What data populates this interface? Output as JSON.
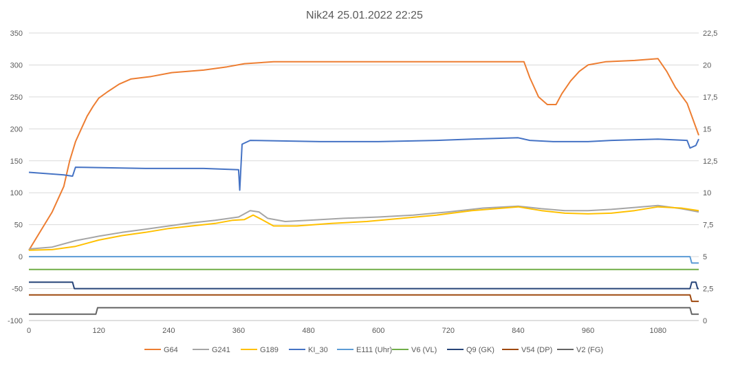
{
  "chart_data": {
    "type": "line",
    "title": "Nik24 25.01.2022 22:25",
    "xlim": [
      0,
      1150
    ],
    "ylim": [
      -100,
      350
    ],
    "y2lim": [
      0,
      22.5
    ],
    "x_ticks": [
      "0",
      "120",
      "240",
      "360",
      "480",
      "600",
      "720",
      "840",
      "960",
      "1080"
    ],
    "y_ticks": [
      "350",
      "300",
      "250",
      "200",
      "150",
      "100",
      "50",
      "0",
      "-50",
      "-100"
    ],
    "y2_ticks": [
      "22,5",
      "20",
      "17,5",
      "15",
      "12,5",
      "10",
      "7,5",
      "5",
      "2,5",
      "0"
    ],
    "grid": true,
    "legend_position": "bottom",
    "series": [
      {
        "name": "G64",
        "color": "#ED7D31",
        "axis": "left",
        "points": [
          [
            0,
            10
          ],
          [
            20,
            40
          ],
          [
            40,
            70
          ],
          [
            60,
            110
          ],
          [
            70,
            150
          ],
          [
            80,
            180
          ],
          [
            90,
            200
          ],
          [
            100,
            220
          ],
          [
            110,
            235
          ],
          [
            120,
            248
          ],
          [
            135,
            258
          ],
          [
            155,
            270
          ],
          [
            175,
            278
          ],
          [
            210,
            282
          ],
          [
            245,
            288
          ],
          [
            300,
            292
          ],
          [
            340,
            297
          ],
          [
            370,
            302
          ],
          [
            420,
            305
          ],
          [
            560,
            305
          ],
          [
            700,
            305
          ],
          [
            850,
            305
          ],
          [
            860,
            280
          ],
          [
            875,
            250
          ],
          [
            890,
            238
          ],
          [
            905,
            238
          ],
          [
            915,
            255
          ],
          [
            930,
            275
          ],
          [
            945,
            290
          ],
          [
            960,
            300
          ],
          [
            990,
            305
          ],
          [
            1040,
            307
          ],
          [
            1080,
            310
          ],
          [
            1095,
            290
          ],
          [
            1110,
            265
          ],
          [
            1130,
            240
          ],
          [
            1150,
            190
          ]
        ]
      },
      {
        "name": "G241",
        "color": "#A5A5A5",
        "axis": "left",
        "points": [
          [
            0,
            12
          ],
          [
            40,
            15
          ],
          [
            80,
            25
          ],
          [
            120,
            32
          ],
          [
            160,
            38
          ],
          [
            200,
            43
          ],
          [
            240,
            48
          ],
          [
            280,
            53
          ],
          [
            320,
            57
          ],
          [
            360,
            62
          ],
          [
            380,
            72
          ],
          [
            395,
            70
          ],
          [
            410,
            60
          ],
          [
            440,
            55
          ],
          [
            480,
            57
          ],
          [
            540,
            60
          ],
          [
            600,
            62
          ],
          [
            660,
            65
          ],
          [
            720,
            70
          ],
          [
            780,
            76
          ],
          [
            840,
            79
          ],
          [
            880,
            75
          ],
          [
            920,
            72
          ],
          [
            960,
            72
          ],
          [
            1000,
            74
          ],
          [
            1040,
            77
          ],
          [
            1080,
            80
          ],
          [
            1120,
            75
          ],
          [
            1150,
            70
          ]
        ]
      },
      {
        "name": "G189",
        "color": "#FFC000",
        "axis": "left",
        "points": [
          [
            0,
            10
          ],
          [
            40,
            11
          ],
          [
            80,
            16
          ],
          [
            120,
            26
          ],
          [
            160,
            33
          ],
          [
            200,
            38
          ],
          [
            240,
            44
          ],
          [
            280,
            48
          ],
          [
            320,
            52
          ],
          [
            350,
            57
          ],
          [
            370,
            58
          ],
          [
            385,
            65
          ],
          [
            400,
            58
          ],
          [
            420,
            48
          ],
          [
            460,
            48
          ],
          [
            520,
            52
          ],
          [
            580,
            55
          ],
          [
            640,
            60
          ],
          [
            700,
            65
          ],
          [
            760,
            72
          ],
          [
            840,
            78
          ],
          [
            880,
            72
          ],
          [
            920,
            68
          ],
          [
            960,
            67
          ],
          [
            1000,
            68
          ],
          [
            1040,
            72
          ],
          [
            1080,
            78
          ],
          [
            1120,
            76
          ],
          [
            1150,
            72
          ]
        ]
      },
      {
        "name": "KI_30",
        "color": "#4472C4",
        "axis": "right",
        "points": [
          [
            0,
            11.6
          ],
          [
            60,
            11.4
          ],
          [
            75,
            11.3
          ],
          [
            80,
            12.0
          ],
          [
            200,
            11.9
          ],
          [
            300,
            11.9
          ],
          [
            360,
            11.8
          ],
          [
            362,
            10.2
          ],
          [
            366,
            13.8
          ],
          [
            380,
            14.1
          ],
          [
            500,
            14.0
          ],
          [
            600,
            14.0
          ],
          [
            700,
            14.1
          ],
          [
            760,
            14.2
          ],
          [
            840,
            14.3
          ],
          [
            860,
            14.1
          ],
          [
            900,
            14.0
          ],
          [
            960,
            14.0
          ],
          [
            1000,
            14.1
          ],
          [
            1080,
            14.2
          ],
          [
            1130,
            14.1
          ],
          [
            1135,
            13.5
          ],
          [
            1145,
            13.7
          ],
          [
            1150,
            14.2
          ]
        ]
      },
      {
        "name": "E111 (Uhr)",
        "color": "#5B9BD5",
        "axis": "left",
        "points": [
          [
            0,
            0
          ],
          [
            1135,
            0
          ],
          [
            1138,
            -10
          ],
          [
            1150,
            -10
          ]
        ]
      },
      {
        "name": "V6 (VL)",
        "color": "#70AD47",
        "axis": "left",
        "points": [
          [
            0,
            -20
          ],
          [
            1150,
            -20
          ]
        ]
      },
      {
        "name": "Q9 (GK)",
        "color": "#264478",
        "axis": "left",
        "points": [
          [
            0,
            -40
          ],
          [
            75,
            -40
          ],
          [
            78,
            -50
          ],
          [
            1135,
            -50
          ],
          [
            1138,
            -40
          ],
          [
            1145,
            -40
          ],
          [
            1148,
            -50
          ],
          [
            1150,
            -50
          ]
        ]
      },
      {
        "name": "V54 (DP)",
        "color": "#9E480E",
        "axis": "left",
        "points": [
          [
            0,
            -60
          ],
          [
            1135,
            -60
          ],
          [
            1138,
            -70
          ],
          [
            1150,
            -70
          ]
        ]
      },
      {
        "name": "V2 (FG)",
        "color": "#636363",
        "axis": "left",
        "points": [
          [
            0,
            -90
          ],
          [
            115,
            -90
          ],
          [
            118,
            -80
          ],
          [
            1135,
            -80
          ],
          [
            1138,
            -90
          ],
          [
            1150,
            -90
          ]
        ]
      }
    ]
  }
}
